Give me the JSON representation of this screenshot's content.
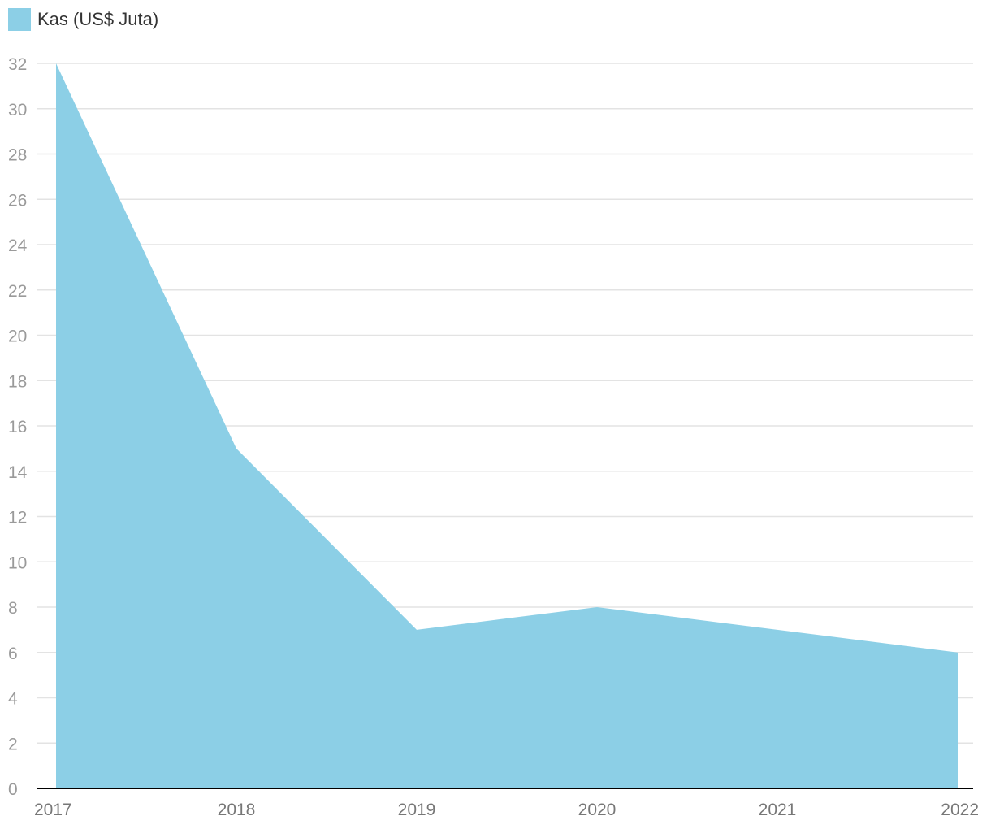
{
  "chart_data": {
    "type": "area",
    "title": "",
    "xlabel": "",
    "ylabel": "",
    "categories": [
      "2017",
      "2018",
      "2019",
      "2020",
      "2021",
      "2022"
    ],
    "series": [
      {
        "name": "Kas (US$ Juta)",
        "values": [
          32,
          15,
          7,
          8,
          7,
          6
        ],
        "color": "#8ccfe6"
      }
    ],
    "ylim": [
      0,
      32
    ],
    "yticks": [
      "0",
      "2",
      "4",
      "6",
      "8",
      "10",
      "12",
      "14",
      "16",
      "18",
      "20",
      "22",
      "24",
      "26",
      "28",
      "30",
      "32"
    ],
    "grid": true,
    "legend_position": "top-left",
    "colors": {
      "area": "#8ccfe6",
      "grid": "#e3e3e3",
      "axis": "#000000"
    }
  }
}
